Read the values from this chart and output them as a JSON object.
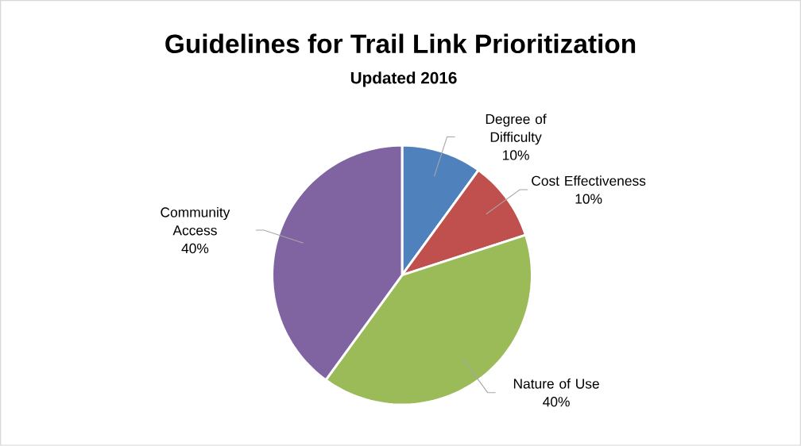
{
  "chart_data": {
    "type": "pie",
    "title": "Guidelines for Trail Link Prioritization",
    "subtitle": "Updated 2016",
    "categories": [
      "Degree of Difficulty",
      "Cost Effectiveness",
      "Nature of Use",
      "Community Access"
    ],
    "values": [
      10,
      10,
      40,
      40
    ],
    "colors": [
      "#4f81bd",
      "#c0504d",
      "#9bbb59",
      "#8064a2"
    ],
    "value_labels": [
      "10%",
      "10%",
      "40%",
      "40%"
    ]
  }
}
